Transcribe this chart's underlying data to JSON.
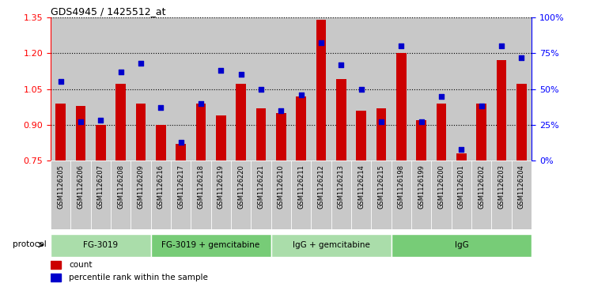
{
  "title": "GDS4945 / 1425512_at",
  "samples": [
    "GSM1126205",
    "GSM1126206",
    "GSM1126207",
    "GSM1126208",
    "GSM1126209",
    "GSM1126216",
    "GSM1126217",
    "GSM1126218",
    "GSM1126219",
    "GSM1126220",
    "GSM1126221",
    "GSM1126210",
    "GSM1126211",
    "GSM1126212",
    "GSM1126213",
    "GSM1126214",
    "GSM1126215",
    "GSM1126198",
    "GSM1126199",
    "GSM1126200",
    "GSM1126201",
    "GSM1126202",
    "GSM1126203",
    "GSM1126204"
  ],
  "counts": [
    0.99,
    0.98,
    0.9,
    1.07,
    0.99,
    0.9,
    0.82,
    0.99,
    0.94,
    1.07,
    0.97,
    0.95,
    1.02,
    1.34,
    1.09,
    0.96,
    0.97,
    1.2,
    0.92,
    0.99,
    0.78,
    0.99,
    1.17,
    1.07
  ],
  "percentiles": [
    55,
    27,
    28,
    62,
    68,
    37,
    13,
    40,
    63,
    60,
    50,
    35,
    46,
    82,
    67,
    50,
    27,
    80,
    27,
    45,
    8,
    38,
    80,
    72
  ],
  "groups": [
    {
      "label": "FG-3019",
      "start": 0,
      "end": 5
    },
    {
      "label": "FG-3019 + gemcitabine",
      "start": 5,
      "end": 11
    },
    {
      "label": "IgG + gemcitabine",
      "start": 11,
      "end": 17
    },
    {
      "label": "IgG",
      "start": 17,
      "end": 24
    }
  ],
  "group_colors": [
    "#aaddaa",
    "#77cc77",
    "#aaddaa",
    "#77cc77"
  ],
  "ylim_left": [
    0.75,
    1.35
  ],
  "ylim_right": [
    0,
    100
  ],
  "yticks_left": [
    0.75,
    0.9,
    1.05,
    1.2,
    1.35
  ],
  "yticks_right": [
    0,
    25,
    50,
    75,
    100
  ],
  "bar_color": "#CC0000",
  "dot_color": "#0000CC",
  "col_bg_color": "#C8C8C8"
}
